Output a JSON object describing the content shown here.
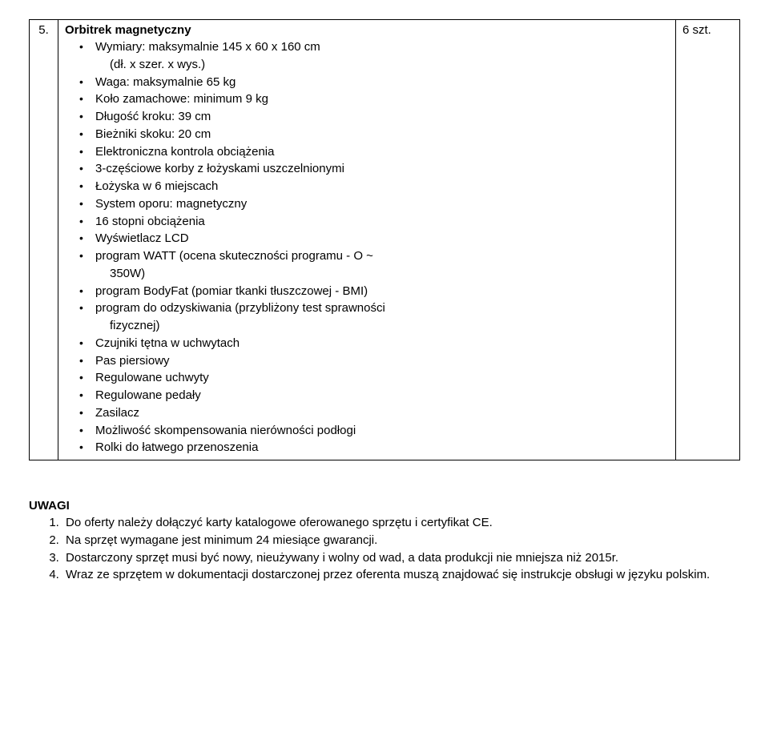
{
  "row": {
    "number": "5.",
    "title": "Orbitrek magnetyczny",
    "qty": "6 szt.",
    "bullets": [
      {
        "text": "Wymiary: maksymalnie 145 x 60 x 160 cm",
        "sub": "(dł. x szer. x wys.)"
      },
      {
        "text": "Waga: maksymalnie 65 kg"
      },
      {
        "text": "Koło zamachowe: minimum 9 kg"
      },
      {
        "text": "Długość kroku: 39 cm"
      },
      {
        "text": "Bieżniki skoku: 20 cm"
      },
      {
        "text": "Elektroniczna kontrola obciążenia"
      },
      {
        "text": "3-częściowe korby z łożyskami uszczelnionymi"
      },
      {
        "text": "Łożyska w 6 miejscach"
      },
      {
        "text": "System oporu: magnetyczny"
      },
      {
        "text": "16 stopni obciążenia"
      },
      {
        "text": "Wyświetlacz LCD"
      },
      {
        "text": "program WATT (ocena skuteczności programu - O ~",
        "sub": "350W)"
      },
      {
        "text": "program BodyFat (pomiar tkanki tłuszczowej - BMI)"
      },
      {
        "text": "program do odzyskiwania (przybliżony test sprawności",
        "sub": "fizycznej)"
      },
      {
        "text": "Czujniki tętna w uchwytach"
      },
      {
        "text": "Pas piersiowy"
      },
      {
        "text": "Regulowane uchwyty"
      },
      {
        "text": "Regulowane pedały"
      },
      {
        "text": "Zasilacz"
      },
      {
        "text": "Możliwość skompensowania nierówności podłogi"
      },
      {
        "text": "Rolki do łatwego przenoszenia"
      }
    ]
  },
  "uwagi": {
    "heading": "UWAGI",
    "items": [
      "Do oferty należy dołączyć karty katalogowe oferowanego sprzętu i certyfikat CE.",
      "Na sprzęt wymagane jest minimum 24 miesiące gwarancji.",
      "Dostarczony sprzęt musi być nowy, nieużywany i wolny od wad, a data produkcji nie mniejsza niż 2015r.",
      "Wraz ze sprzętem w dokumentacji dostarczonej przez oferenta muszą znajdować się instrukcje obsługi w języku polskim."
    ]
  }
}
